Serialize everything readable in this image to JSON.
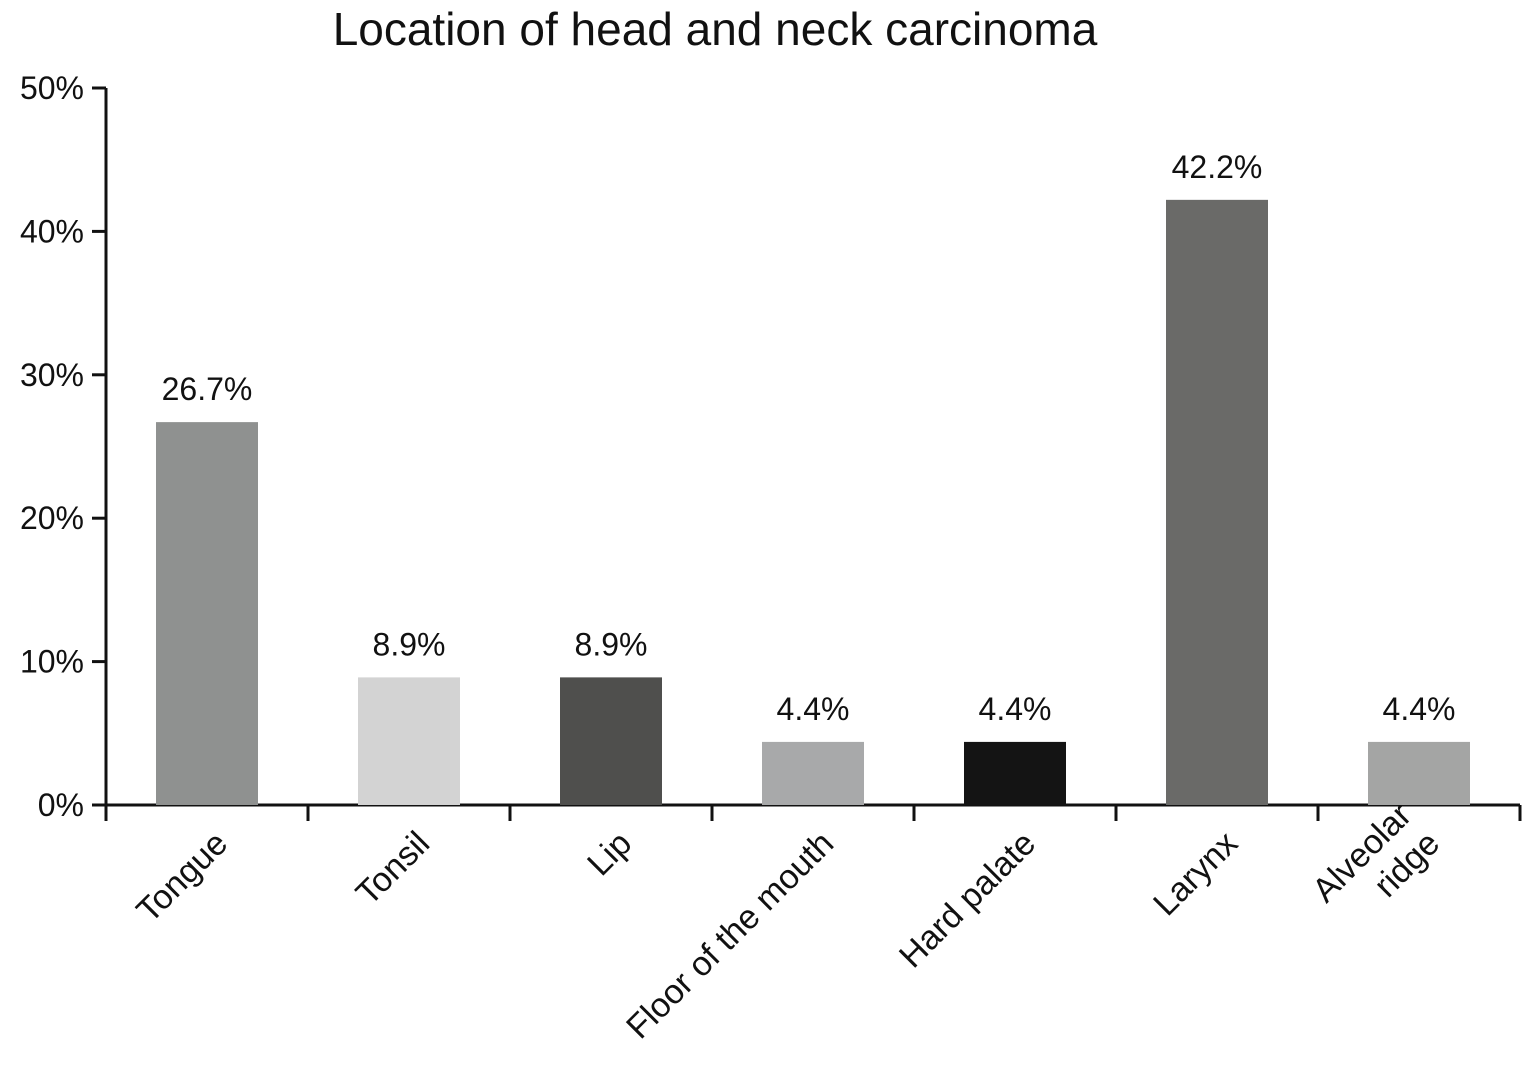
{
  "chart_data": {
    "type": "bar",
    "title": "Location of head and neck carcinoma",
    "xlabel": "",
    "ylabel": "",
    "ylim": [
      0,
      50
    ],
    "y_ticks": [
      "0%",
      "10%",
      "20%",
      "30%",
      "40%",
      "50%"
    ],
    "categories": [
      [
        "Tongue"
      ],
      [
        "Tonsil"
      ],
      [
        "Lip"
      ],
      [
        "Floor of the mouth"
      ],
      [
        "Hard palate"
      ],
      [
        "Larynx"
      ],
      [
        "Alveolar",
        "ridge"
      ]
    ],
    "values": [
      26.7,
      8.9,
      8.9,
      4.4,
      4.4,
      42.2,
      4.4
    ],
    "value_labels": [
      "26.7%",
      "8.9%",
      "8.9%",
      "4.4%",
      "4.4%",
      "42.2%",
      "4.4%"
    ],
    "bar_colors": [
      "#8f9190",
      "#d3d3d3",
      "#4f4f4d",
      "#a8a9aa",
      "#141414",
      "#6a6a68",
      "#a4a5a4"
    ],
    "grid": false,
    "legend": "none"
  }
}
